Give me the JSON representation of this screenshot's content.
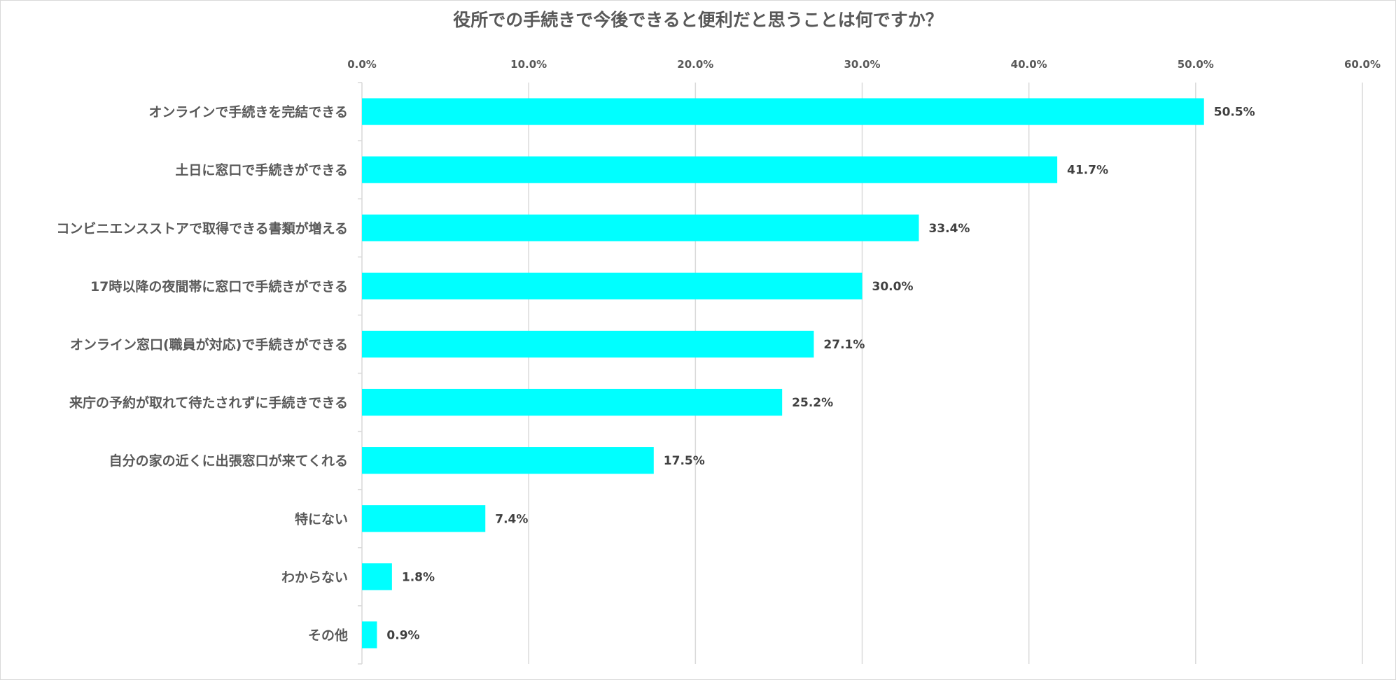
{
  "chart_data": {
    "type": "bar",
    "orientation": "horizontal",
    "title": "役所での手続きで今後できると便利だと思うことは何ですか？",
    "xlabel": "",
    "ylabel": "",
    "xlim": [
      0,
      60
    ],
    "x_ticks": [
      "0.0%",
      "10.0%",
      "20.0%",
      "30.0%",
      "40.0%",
      "50.0%",
      "60.0%"
    ],
    "x_tick_values": [
      0,
      10,
      20,
      30,
      40,
      50,
      60
    ],
    "grid": true,
    "legend": "none",
    "bar_color": "#00FFFF",
    "categories": [
      "オンラインで手続きを完結できる",
      "土日に窓口で手続きができる",
      "コンビニエンスストアで取得できる書類が増える",
      "17時以降の夜間帯に窓口で手続きができる",
      "オンライン窓口(職員が対応)で手続きができる",
      "来庁の予約が取れて待たされずに手続きできる",
      "自分の家の近くに出張窓口が来てくれる",
      "特にない",
      "わからない",
      "その他"
    ],
    "values": [
      50.5,
      41.7,
      33.4,
      30.0,
      27.1,
      25.2,
      17.5,
      7.4,
      1.8,
      0.9
    ],
    "data_labels": [
      "50.5%",
      "41.7%",
      "33.4%",
      "30.0%",
      "27.1%",
      "25.2%",
      "17.5%",
      "7.4%",
      "1.8%",
      "0.9%"
    ]
  }
}
